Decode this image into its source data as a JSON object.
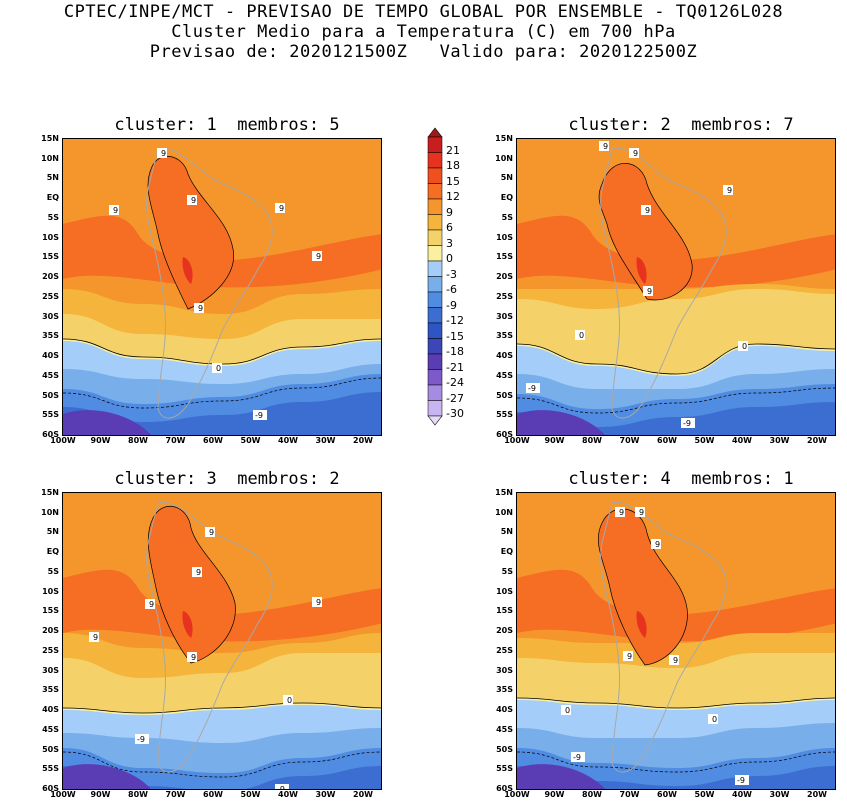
{
  "header": {
    "line1": "CPTEC/INPE/MCT - PREVISAO DE TEMPO GLOBAL POR ENSEMBLE - TQ0126L028",
    "line2": "Cluster Medio para a Temperatura (C) em 700 hPa",
    "line3": "Previsao de: 2020121500Z   Valido para: 2020122500Z"
  },
  "panels": [
    {
      "title": "cluster: 1  membros: 5"
    },
    {
      "title": "cluster: 2  membros: 7"
    },
    {
      "title": "cluster: 3  membros: 2"
    },
    {
      "title": "cluster: 4  membros: 1"
    }
  ],
  "lat_labels": [
    "15N",
    "10N",
    "5N",
    "EQ",
    "5S",
    "10S",
    "15S",
    "20S",
    "25S",
    "30S",
    "35S",
    "40S",
    "45S",
    "50S",
    "55S",
    "60S"
  ],
  "lon_labels": [
    "100W",
    "90W",
    "80W",
    "70W",
    "60W",
    "50W",
    "40W",
    "30W",
    "20W"
  ],
  "colorbar": {
    "labels": [
      "21",
      "18",
      "15",
      "12",
      "9",
      "6",
      "3",
      "0",
      "-3",
      "-6",
      "-9",
      "-12",
      "-15",
      "-18",
      "-21",
      "-24",
      "-27",
      "-30"
    ],
    "colors": [
      "#a01818",
      "#c81e1e",
      "#e6321e",
      "#f0501e",
      "#f56e23",
      "#f5962d",
      "#f5b43c",
      "#f5d269",
      "#faf0a0",
      "#a5cdfa",
      "#78afeb",
      "#508ce1",
      "#3c6ed2",
      "#2d55c3",
      "#3c46b9",
      "#5a3cb4",
      "#7d5ac8",
      "#a58ce1",
      "#c8b4f0",
      "#e6dcfa"
    ]
  },
  "contour_labels": {
    "nine": "9",
    "zero": "0",
    "minus_nine": "-9"
  }
}
